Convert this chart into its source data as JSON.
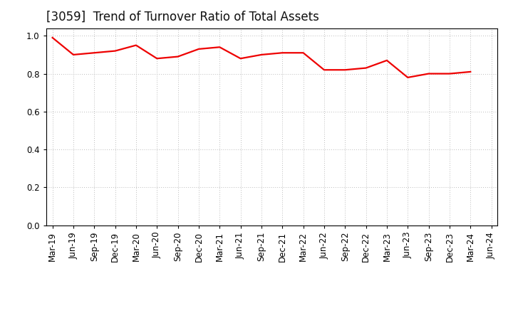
{
  "title": "[3059]  Trend of Turnover Ratio of Total Assets",
  "x_labels": [
    "Mar-19",
    "Jun-19",
    "Sep-19",
    "Dec-19",
    "Mar-20",
    "Jun-20",
    "Sep-20",
    "Dec-20",
    "Mar-21",
    "Jun-21",
    "Sep-21",
    "Dec-21",
    "Mar-22",
    "Jun-22",
    "Sep-22",
    "Dec-22",
    "Mar-23",
    "Jun-23",
    "Sep-23",
    "Dec-23",
    "Mar-24",
    "Jun-24"
  ],
  "values": [
    0.99,
    0.9,
    0.91,
    0.92,
    0.95,
    0.88,
    0.89,
    0.93,
    0.94,
    0.88,
    0.9,
    0.91,
    0.91,
    0.82,
    0.82,
    0.83,
    0.87,
    0.78,
    0.8,
    0.8,
    0.81,
    null
  ],
  "line_color": "#ee0000",
  "line_width": 1.6,
  "ylim": [
    0.0,
    1.04
  ],
  "yticks": [
    0.0,
    0.2,
    0.4,
    0.6,
    0.8,
    1.0
  ],
  "background_color": "#ffffff",
  "grid_color": "#bbbbbb",
  "title_fontsize": 12,
  "tick_fontsize": 8.5,
  "spine_color": "#000000"
}
